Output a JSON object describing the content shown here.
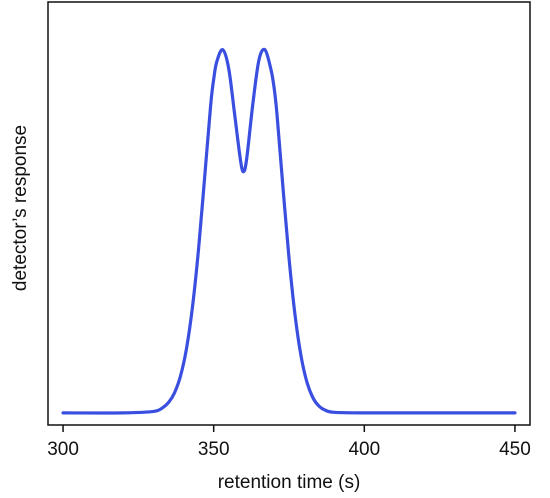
{
  "chart_data": {
    "type": "line",
    "title": "",
    "xlabel": "retention time (s)",
    "ylabel": "detector’s response",
    "xlim": [
      295,
      455
    ],
    "ylim": [
      -0.03,
      1.02
    ],
    "x_ticks": [
      300,
      350,
      400,
      450
    ],
    "x_tick_labels": [
      "300",
      "350",
      "400",
      "450"
    ],
    "y_ticks_shown": false,
    "grid": false,
    "legend": "none",
    "colors": {
      "line": "#3a4fe0",
      "frame": "#111111"
    },
    "series": [
      {
        "x": [
          300,
          320,
          330,
          333,
          335,
          337,
          339,
          341,
          343,
          345,
          347,
          349,
          350,
          351,
          353,
          355,
          357,
          359,
          360,
          361,
          363,
          365,
          367,
          369,
          370,
          371,
          373,
          375,
          377,
          379,
          381,
          383,
          385,
          387,
          390,
          400,
          420,
          450
        ],
        "y": [
          0,
          0,
          0.0036,
          0.0126,
          0.0257,
          0.0499,
          0.092,
          0.1609,
          0.2657,
          0.4088,
          0.5847,
          0.7641,
          0.8282,
          0.8712,
          0.9016,
          0.8542,
          0.7383,
          0.6219,
          0.5993,
          0.6337,
          0.7673,
          0.8751,
          0.9016,
          0.8528,
          0.81,
          0.7422,
          0.5594,
          0.3848,
          0.2431,
          0.141,
          0.0752,
          0.0368,
          0.0165,
          0.0068,
          0.0015,
          0,
          0,
          0
        ]
      }
    ]
  }
}
